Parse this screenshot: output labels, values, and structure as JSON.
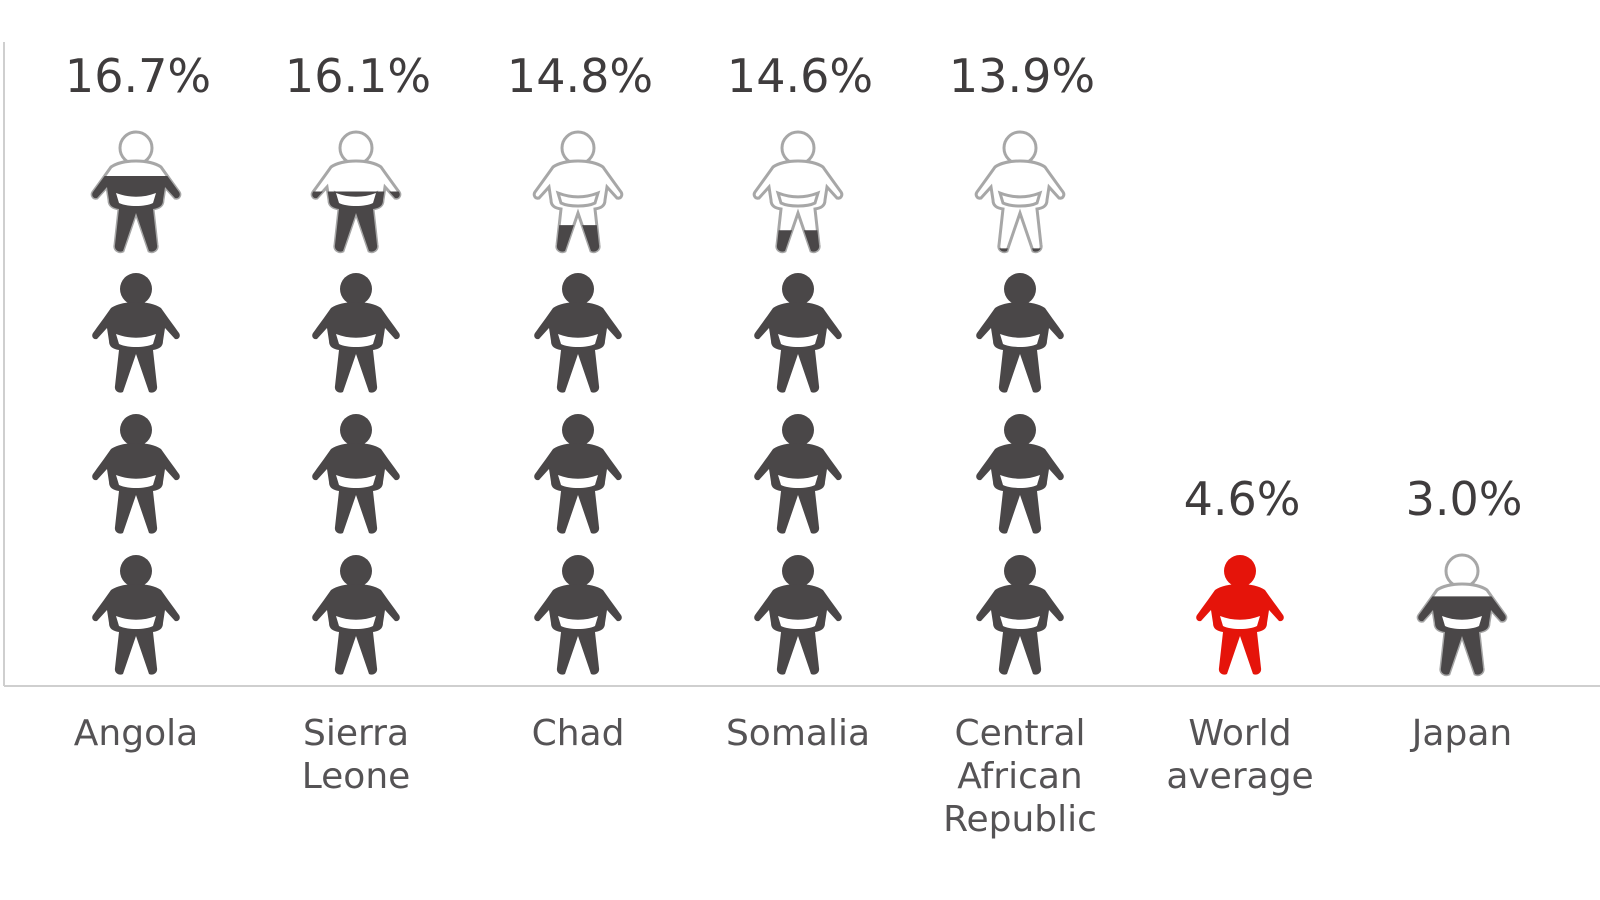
{
  "chart_data": {
    "type": "pictograph",
    "unit_meaning": "",
    "categories": [
      "Angola",
      "Sierra\nLeone",
      "Chad",
      "Somalia",
      "Central\nAfrican\nRepublic",
      "World\naverage",
      "Japan"
    ],
    "values": [
      16.7,
      16.1,
      14.8,
      14.6,
      13.9,
      4.6,
      3.0
    ],
    "value_labels": [
      "16.7%",
      "16.1%",
      "14.8%",
      "14.6%",
      "13.9%",
      "4.6%",
      "3.0%"
    ],
    "highlight_category": "World\naverage",
    "units_per_icon": 4.6,
    "colors": {
      "icon_fill": "#4a4748",
      "icon_empty_stroke": "#a7a7a7",
      "highlight": "#e5140a",
      "value_text": "#3f3c3d",
      "label_text": "#555355",
      "axis": "#cfcfcf"
    }
  }
}
